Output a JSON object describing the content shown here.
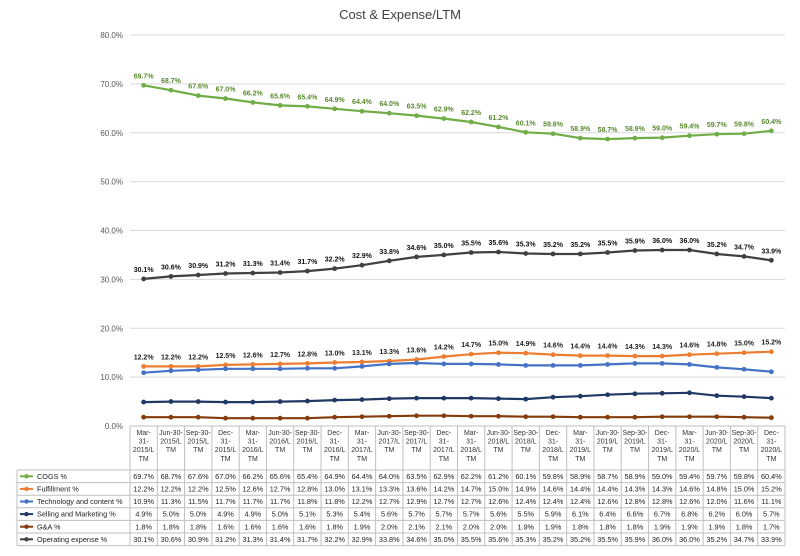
{
  "chart_data": {
    "type": "line",
    "title": "Cost & Expense/LTM",
    "ylim": [
      0,
      80
    ],
    "yticks": [
      "0.0%",
      "10.0%",
      "20.0%",
      "30.0%",
      "40.0%",
      "50.0%",
      "60.0%",
      "70.0%",
      "80.0%"
    ],
    "grid": true,
    "legend": "data table below chart",
    "categories": [
      "Mar-31-2015/LTM",
      "Jun-30-2015/LTM",
      "Sep-30-2015/LTM",
      "Dec-31-2015/LTM",
      "Mar-31-2016/LTM",
      "Jun-30-2016/LTM",
      "Sep-30-2016/LTM",
      "Dec-31-2016/LTM",
      "Mar-31-2017/LTM",
      "Jun-30-2017/LTM",
      "Sep-30-2017/LTM",
      "Dec-31-2017/LTM",
      "Mar-31-2018/LTM",
      "Jun-30-2018/LTM",
      "Sep-30-2018/LTM",
      "Dec-31-2018/LTM",
      "Mar-31-2019/LTM",
      "Jun-30-2019/LTM",
      "Sep-30-2019/LTM",
      "Dec-31-2019/LTM",
      "Mar-31-2020/LTM",
      "Jun-30-2020/LTM",
      "Sep-30-2020/LTM",
      "Dec-31-2020/LTM"
    ],
    "category_lines": [
      [
        "Mar-",
        "31-",
        "2015/L",
        "TM"
      ],
      [
        "Jun-30-",
        "2015/L",
        "TM"
      ],
      [
        "Sep-30-",
        "2015/L",
        "TM"
      ],
      [
        "Dec-",
        "31-",
        "2015/L",
        "TM"
      ],
      [
        "Mar-",
        "31-",
        "2016/L",
        "TM"
      ],
      [
        "Jun-30-",
        "2016/L",
        "TM"
      ],
      [
        "Sep-30-",
        "2016/L",
        "TM"
      ],
      [
        "Dec-",
        "31-",
        "2016/L",
        "TM"
      ],
      [
        "Mar-",
        "31-",
        "2017/L",
        "TM"
      ],
      [
        "Jun-30-",
        "2017/L",
        "TM"
      ],
      [
        "Sep-30-",
        "2017/L",
        "TM"
      ],
      [
        "Dec-",
        "31-",
        "2017/L",
        "TM"
      ],
      [
        "Mar-",
        "31-",
        "2018/L",
        "TM"
      ],
      [
        "Jun-30-",
        "2018/L",
        "TM"
      ],
      [
        "Sep-30-",
        "2018/L",
        "TM"
      ],
      [
        "Dec-",
        "31-",
        "2018/L",
        "TM"
      ],
      [
        "Mar-",
        "31-",
        "2019/L",
        "TM"
      ],
      [
        "Jun-30-",
        "2019/L",
        "TM"
      ],
      [
        "Sep-30-",
        "2019/L",
        "TM"
      ],
      [
        "Dec-",
        "31-",
        "2019/L",
        "TM"
      ],
      [
        "Mar-",
        "31-",
        "2020/L",
        "TM"
      ],
      [
        "Jun-30-",
        "2020/L",
        "TM"
      ],
      [
        "Sep-30-",
        "2020/L",
        "TM"
      ],
      [
        "Dec-",
        "31-",
        "2020/L",
        "TM"
      ]
    ],
    "series": [
      {
        "name": "COGS %",
        "color": "#70ad47",
        "labeled": true,
        "label_color": "#5a8a2e",
        "values": [
          69.7,
          68.7,
          67.6,
          67.0,
          66.2,
          65.6,
          65.4,
          64.9,
          64.4,
          64.0,
          63.5,
          62.9,
          62.2,
          61.2,
          60.1,
          59.8,
          58.9,
          58.7,
          58.9,
          59.0,
          59.4,
          59.7,
          59.8,
          60.4
        ]
      },
      {
        "name": "Fulfillment %",
        "color": "#ed7d31",
        "labeled": true,
        "label_color": "#222222",
        "values": [
          12.2,
          12.2,
          12.2,
          12.5,
          12.6,
          12.7,
          12.8,
          13.0,
          13.1,
          13.3,
          13.6,
          14.2,
          14.7,
          15.0,
          14.9,
          14.6,
          14.4,
          14.4,
          14.3,
          14.3,
          14.6,
          14.8,
          15.0,
          15.2
        ]
      },
      {
        "name": "Technology and content %",
        "color": "#4472c4",
        "labeled": false,
        "values": [
          10.9,
          11.3,
          11.5,
          11.7,
          11.7,
          11.7,
          11.8,
          11.8,
          12.2,
          12.7,
          12.9,
          12.7,
          12.7,
          12.6,
          12.4,
          12.4,
          12.4,
          12.6,
          12.8,
          12.8,
          12.6,
          12.0,
          11.6,
          11.1
        ]
      },
      {
        "name": "Selling and Marketing %",
        "color": "#1f3864",
        "labeled": false,
        "values": [
          4.9,
          5.0,
          5.0,
          4.9,
          4.9,
          5.0,
          5.1,
          5.3,
          5.4,
          5.6,
          5.7,
          5.7,
          5.7,
          5.6,
          5.5,
          5.9,
          6.1,
          6.4,
          6.6,
          6.7,
          6.8,
          6.2,
          6.0,
          5.7
        ]
      },
      {
        "name": "G&A %",
        "color": "#843c0c",
        "labeled": false,
        "values": [
          1.8,
          1.8,
          1.8,
          1.6,
          1.6,
          1.6,
          1.6,
          1.8,
          1.9,
          2.0,
          2.1,
          2.1,
          2.0,
          2.0,
          1.9,
          1.9,
          1.8,
          1.8,
          1.8,
          1.9,
          1.9,
          1.9,
          1.8,
          1.7
        ]
      },
      {
        "name": "Operating expense %",
        "color": "#404040",
        "labeled": true,
        "label_color": "#111111",
        "values": [
          30.1,
          30.6,
          30.9,
          31.2,
          31.3,
          31.4,
          31.7,
          32.2,
          32.9,
          33.8,
          34.6,
          35.0,
          35.5,
          35.6,
          35.3,
          35.2,
          35.2,
          35.5,
          35.9,
          36.0,
          36.0,
          35.2,
          34.7,
          33.9
        ]
      }
    ]
  }
}
